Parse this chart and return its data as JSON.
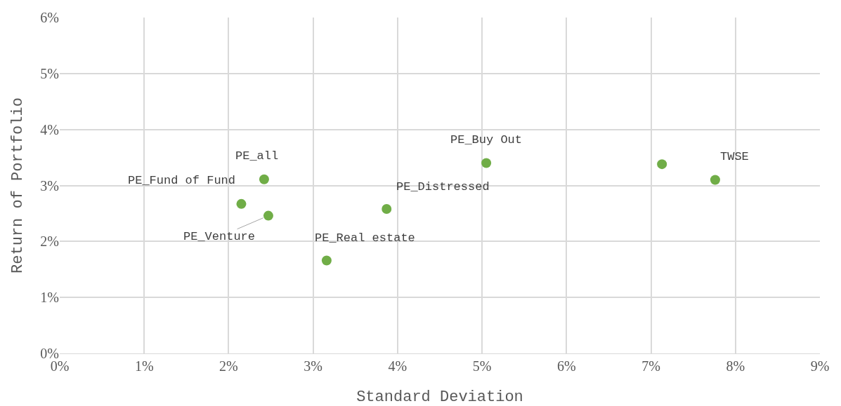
{
  "chart_data": {
    "type": "scatter",
    "xlabel": "Standard Deviation",
    "ylabel": "Return of Portfolio",
    "series": [
      {
        "color": "#70ad47",
        "x": [
          2.15,
          2.42,
          2.47,
          3.16,
          3.87,
          5.05,
          7.13,
          7.76
        ],
        "values": [
          2.67,
          3.11,
          2.46,
          1.66,
          2.58,
          3.4,
          3.38,
          3.1
        ]
      }
    ],
    "annotations": [
      {
        "text": "PE_Fund of Fund",
        "x": 2.15,
        "y": 2.67
      },
      {
        "text": "PE_all",
        "x": 2.42,
        "y": 3.11
      },
      {
        "text": "PE_Venture",
        "x": 2.47,
        "y": 2.46
      },
      {
        "text": "PE_Real estate",
        "x": 3.16,
        "y": 1.66
      },
      {
        "text": "PE_Distressed",
        "x": 3.87,
        "y": 2.58
      },
      {
        "text": "PE_Buy Out",
        "x": 5.05,
        "y": 3.4
      },
      {
        "text": "TWSE",
        "x": 7.76,
        "y": 3.1
      }
    ],
    "xlim": [
      0,
      9
    ],
    "xticks": [
      {
        "value": 0,
        "label": "0%"
      },
      {
        "value": 1,
        "label": "1%"
      },
      {
        "value": 2,
        "label": "2%"
      },
      {
        "value": 3,
        "label": "3%"
      },
      {
        "value": 4,
        "label": "4%"
      },
      {
        "value": 5,
        "label": "5%"
      },
      {
        "value": 6,
        "label": "6%"
      },
      {
        "value": 7,
        "label": "7%"
      },
      {
        "value": 8,
        "label": "8%"
      },
      {
        "value": 9,
        "label": "9%"
      }
    ],
    "ylim": [
      0,
      6
    ],
    "yticks": [
      {
        "value": 0,
        "label": "0%"
      },
      {
        "value": 1,
        "label": "1%"
      },
      {
        "value": 2,
        "label": "2%"
      },
      {
        "value": 3,
        "label": "3%"
      },
      {
        "value": 4,
        "label": "4%"
      },
      {
        "value": 5,
        "label": "5%"
      },
      {
        "value": 6,
        "label": "6%"
      }
    ],
    "grid": true,
    "marker": "circle"
  }
}
